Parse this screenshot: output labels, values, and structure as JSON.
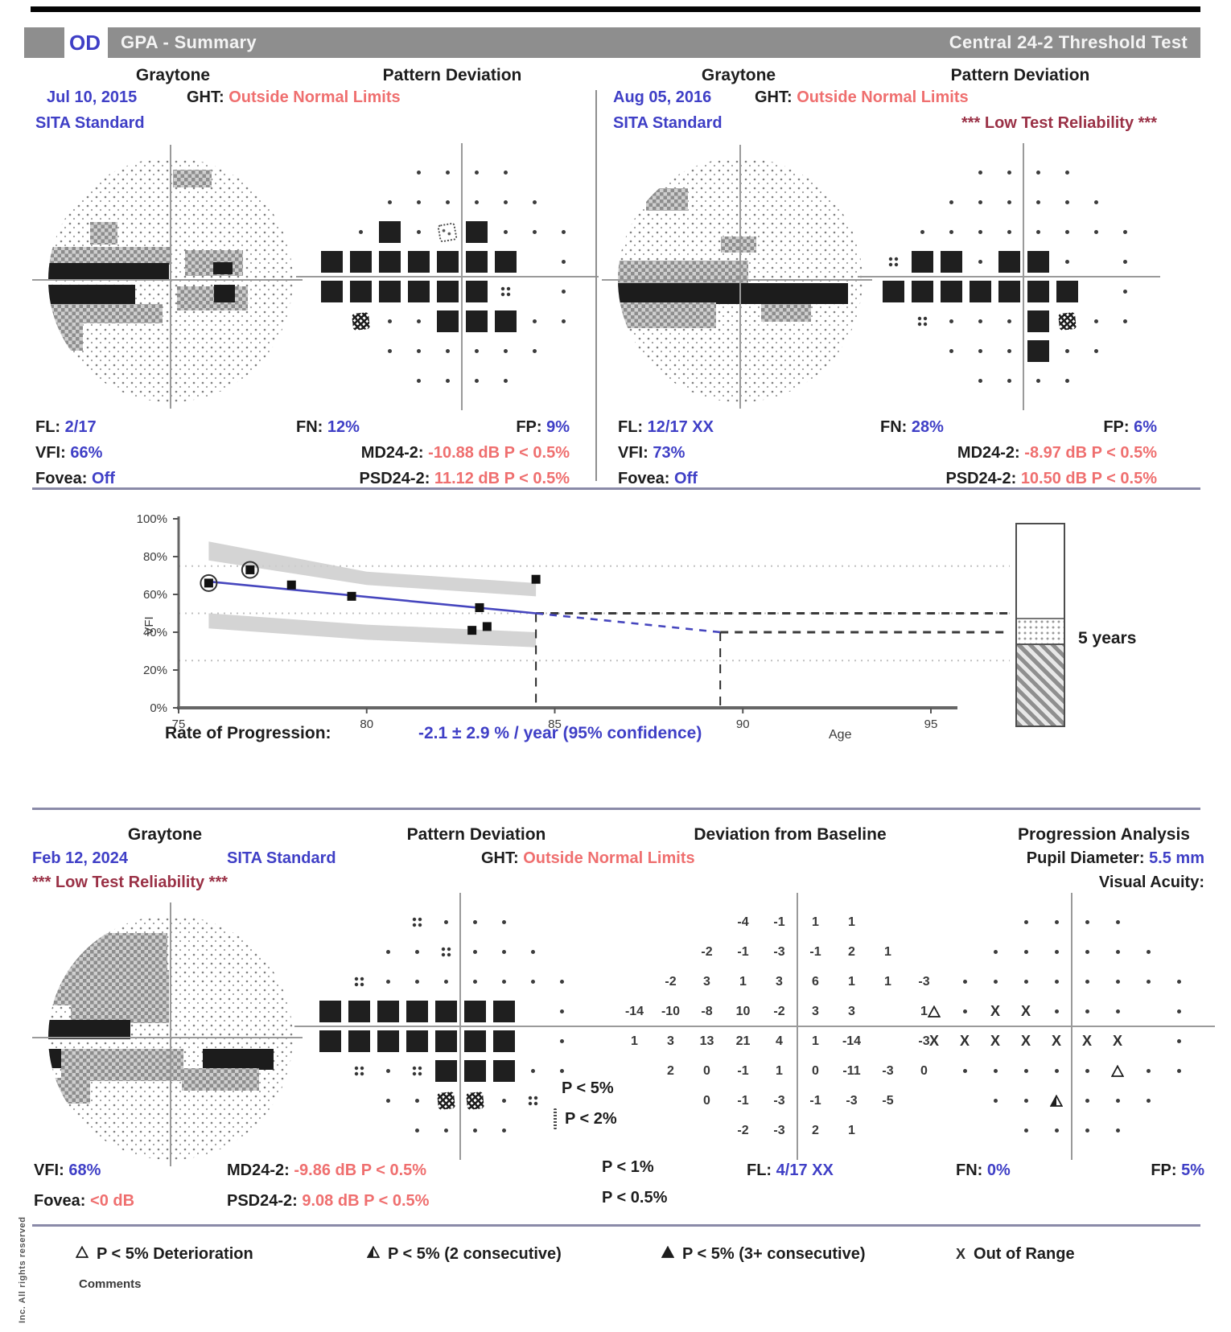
{
  "header": {
    "eye": "OD",
    "title": "GPA - Summary",
    "subtitle": "Central 24-2 Threshold Test"
  },
  "baseline": {
    "column_headers": [
      "Graytone",
      "Pattern Deviation",
      "Graytone",
      "Pattern Deviation"
    ],
    "tests": [
      {
        "date": "Jul 10, 2015",
        "strategy": "SITA Standard",
        "ght_label": "GHT:",
        "ght_value": "Outside Normal Limits",
        "warning": "",
        "stats": {
          "fl_label": "FL:",
          "fl": "2/17",
          "fn_label": "FN:",
          "fn": "12%",
          "fp_label": "FP:",
          "fp": "9%",
          "vfi_label": "VFI:",
          "vfi": "66%",
          "md_label": "MD24-2:",
          "md": "-10.88 dB P < 0.5%",
          "fovea_label": "Fovea:",
          "fovea": "Off",
          "psd_label": "PSD24-2:",
          "psd": "11.12 dB P < 0.5%"
        },
        "pattern_deviation": [
          [
            ".",
            ".",
            ".",
            "."
          ],
          [
            ".",
            ".",
            ".",
            ".",
            ".",
            "."
          ],
          [
            ".",
            "S",
            ".",
            "2",
            "S",
            ".",
            ".",
            "."
          ],
          [
            "S",
            "S",
            "S",
            "S",
            "S",
            "S",
            "S",
            "_",
            "."
          ],
          [
            "S",
            "S",
            "S",
            "S",
            "S",
            "S",
            "4",
            "_",
            "."
          ],
          [
            "1",
            ".",
            ".",
            "S",
            "S",
            "S",
            ".",
            "."
          ],
          [
            ".",
            ".",
            ".",
            ".",
            ".",
            "."
          ],
          [
            ".",
            ".",
            ".",
            "."
          ]
        ]
      },
      {
        "date": "Aug 05, 2016",
        "strategy": "SITA Standard",
        "ght_label": "GHT:",
        "ght_value": "Outside Normal Limits",
        "warning": "*** Low Test Reliability ***",
        "stats": {
          "fl_label": "FL:",
          "fl": "12/17 XX",
          "fn_label": "FN:",
          "fn": "28%",
          "fp_label": "FP:",
          "fp": "6%",
          "vfi_label": "VFI:",
          "vfi": "73%",
          "md_label": "MD24-2:",
          "md": "-8.97 dB P < 0.5%",
          "fovea_label": "Fovea:",
          "fovea": "Off",
          "psd_label": "PSD24-2:",
          "psd": "10.50 dB P < 0.5%"
        },
        "pattern_deviation": [
          [
            ".",
            ".",
            ".",
            "."
          ],
          [
            ".",
            ".",
            ".",
            ".",
            ".",
            "."
          ],
          [
            ".",
            ".",
            ".",
            ".",
            ".",
            ".",
            ".",
            "."
          ],
          [
            "4",
            "S",
            "S",
            ".",
            "S",
            "S",
            ".",
            "_",
            "."
          ],
          [
            "S",
            "S",
            "S",
            "S",
            "S",
            "S",
            "S",
            "_",
            "."
          ],
          [
            "4",
            ".",
            ".",
            ".",
            "S",
            "1",
            ".",
            "."
          ],
          [
            ".",
            ".",
            ".",
            "S",
            ".",
            "."
          ],
          [
            ".",
            ".",
            ".",
            "."
          ]
        ]
      }
    ]
  },
  "chart_data": {
    "type": "scatter",
    "xlabel": "Age",
    "ylabel": "VFI",
    "xlim": [
      75,
      95
    ],
    "ylim": [
      0,
      100
    ],
    "xticks": [
      75,
      80,
      85,
      90,
      95
    ],
    "yticks": [
      0,
      20,
      40,
      60,
      80,
      100
    ],
    "gridlines": [
      25,
      50,
      75
    ],
    "points": [
      {
        "age": 75.8,
        "vfi": 66,
        "baseline": true
      },
      {
        "age": 76.9,
        "vfi": 73,
        "baseline": true
      },
      {
        "age": 78.0,
        "vfi": 65,
        "baseline": false
      },
      {
        "age": 79.6,
        "vfi": 59,
        "baseline": false
      },
      {
        "age": 83.0,
        "vfi": 53,
        "baseline": false
      },
      {
        "age": 82.8,
        "vfi": 41,
        "baseline": false
      },
      {
        "age": 83.2,
        "vfi": 43,
        "baseline": false
      },
      {
        "age": 84.5,
        "vfi": 68,
        "baseline": false
      }
    ],
    "trend": {
      "x1": 75.7,
      "y1": 67,
      "x2": 84.5,
      "y2": 50
    },
    "projection": {
      "x1": 84.5,
      "y1": 50,
      "x2": 89.4,
      "y2": 40
    },
    "vlines": [
      {
        "x": 84.5,
        "top": 50
      },
      {
        "x": 89.4,
        "top": 40
      }
    ],
    "hlines_dashed": [
      {
        "y": 50,
        "from": 84.5
      },
      {
        "y": 40,
        "from": 89.4
      }
    ],
    "band_upper": [
      [
        75.8,
        88
      ],
      [
        80,
        72
      ],
      [
        84.5,
        66
      ],
      [
        84.5,
        59
      ],
      [
        80,
        65
      ],
      [
        75.8,
        78
      ]
    ],
    "band_lower": [
      [
        75.8,
        50
      ],
      [
        80,
        44
      ],
      [
        84.5,
        40
      ],
      [
        84.5,
        32
      ],
      [
        80,
        36
      ],
      [
        75.8,
        42
      ]
    ],
    "rate_label": "Rate of Progression:",
    "rate_value": "-2.1 ± 2.9 % / year (95% confidence)",
    "bar_label": "5 years",
    "bar_segments": [
      {
        "style": "white",
        "pct": 47
      },
      {
        "style": "stipple",
        "pct": 12
      },
      {
        "style": "hatch",
        "pct": 41
      }
    ]
  },
  "followup": {
    "column_headers": [
      "Graytone",
      "Pattern Deviation",
      "Deviation from Baseline",
      "Progression Analysis"
    ],
    "date": "Feb 12, 2024",
    "strategy": "SITA Standard",
    "ght_label": "GHT:",
    "ght_value": "Outside Normal Limits",
    "warning": "*** Low Test Reliability ***",
    "pupil_label": "Pupil Diameter:",
    "pupil_value": "5.5 mm",
    "visual_acuity_label": "Visual Acuity:",
    "stats": {
      "vfi_label": "VFI:",
      "vfi": "68%",
      "md_label": "MD24-2:",
      "md": "-9.86 dB P < 0.5%",
      "fovea_label": "Fovea:",
      "fovea": "<0 dB",
      "fovea_symbol": "S",
      "psd_label": "PSD24-2:",
      "psd": "9.08 dB P < 0.5%",
      "fl_label": "FL:",
      "fl": "4/17 XX",
      "fn_label": "FN:",
      "fn": "0%",
      "fp_label": "FP:",
      "fp": "5%"
    },
    "pattern_deviation": [
      [
        "4",
        ".",
        ".",
        "."
      ],
      [
        ".",
        ".",
        "4",
        ".",
        ".",
        "."
      ],
      [
        "4",
        ".",
        ".",
        ".",
        ".",
        ".",
        ".",
        "."
      ],
      [
        "S",
        "S",
        "S",
        "S",
        "S",
        "S",
        "S",
        "_",
        "."
      ],
      [
        "S",
        "S",
        "S",
        "S",
        "S",
        "S",
        "S",
        "_",
        "."
      ],
      [
        "4",
        ".",
        "4",
        "S",
        "S",
        "S",
        ".",
        "."
      ],
      [
        ".",
        ".",
        "1",
        "1",
        ".",
        "4"
      ],
      [
        ".",
        ".",
        ".",
        "."
      ]
    ],
    "deviation_from_baseline": [
      [
        "-4",
        "-1",
        "1",
        "1"
      ],
      [
        "-2",
        "-1",
        "-3",
        "-1",
        "2",
        "1"
      ],
      [
        "-2",
        "3",
        "1",
        "3",
        "6",
        "1",
        "1",
        "-3"
      ],
      [
        "-14",
        "-10",
        "-8",
        "10",
        "-2",
        "3",
        "3",
        "",
        "1"
      ],
      [
        "1",
        "3",
        "13",
        "21",
        "4",
        "1",
        "-14",
        "",
        "-3"
      ],
      [
        "2",
        "0",
        "-1",
        "1",
        "0",
        "-11",
        "-3",
        "0"
      ],
      [
        "0",
        "-1",
        "-3",
        "-1",
        "-3",
        "-5"
      ],
      [
        "-2",
        "-3",
        "2",
        "1"
      ]
    ],
    "progression": [
      [
        ".",
        ".",
        ".",
        "."
      ],
      [
        ".",
        ".",
        ".",
        ".",
        ".",
        "."
      ],
      [
        ".",
        ".",
        ".",
        ".",
        ".",
        ".",
        ".",
        "."
      ],
      [
        "t1",
        ".",
        "X",
        "X",
        ".",
        ".",
        ".",
        "_",
        "."
      ],
      [
        "X",
        "X",
        "X",
        "X",
        "X",
        "X",
        "X",
        "_",
        "."
      ],
      [
        ".",
        ".",
        ".",
        ".",
        ".",
        "t1",
        ".",
        "."
      ],
      [
        ".",
        ".",
        "t2",
        ".",
        ".",
        "."
      ],
      [
        ".",
        ".",
        ".",
        "."
      ]
    ]
  },
  "p_legend": [
    {
      "sym": "4",
      "label": "P < 5%"
    },
    {
      "sym": "2",
      "label": "P < 2%"
    },
    {
      "sym": "1",
      "label": "P < 1%"
    },
    {
      "sym": "S",
      "label": "P < 0.5%"
    }
  ],
  "bottom_legend": [
    {
      "sym": "t1",
      "label": "P < 5% Deterioration"
    },
    {
      "sym": "t2",
      "label": "P < 5% (2 consecutive)"
    },
    {
      "sym": "t3",
      "label": "P < 5% (3+ consecutive)"
    },
    {
      "sym": "X",
      "label": "Out of Range"
    }
  ],
  "comments_label": "Comments",
  "side_text": "Inc. All rights reserved",
  "colors": {
    "accent_blue": "#3f3fc6",
    "alert_red": "#ef6f6f",
    "warning_maroon": "#9a3146",
    "header_gray": "#8e8e8e"
  }
}
